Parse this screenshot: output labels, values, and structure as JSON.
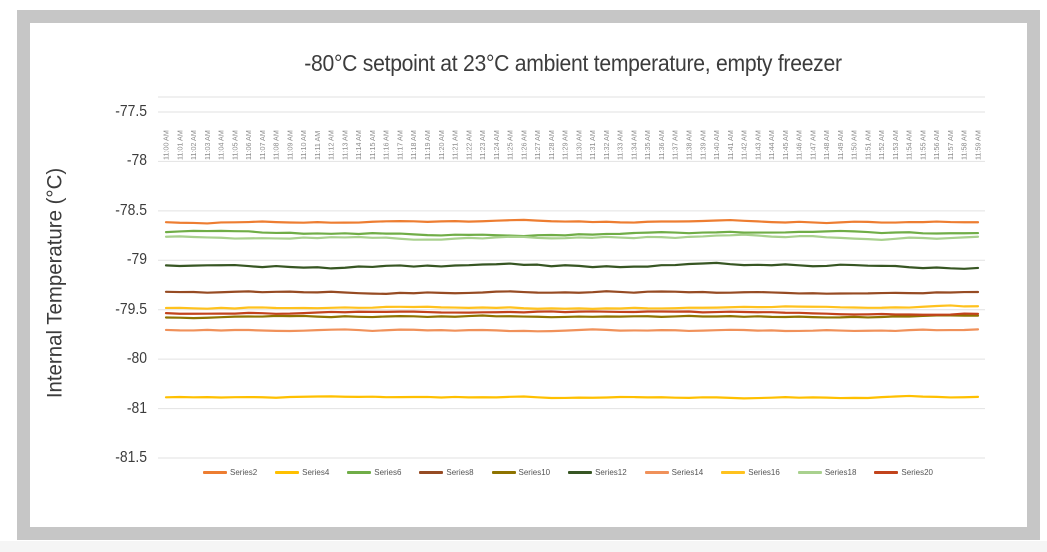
{
  "frame": {
    "border_color": "#c6c6c6",
    "background": "#ffffff",
    "page_strip_color": "#f5f5f5"
  },
  "chart_data": {
    "type": "line",
    "title": "-80°C setpoint at 23°C ambient temperature, empty freezer",
    "xlabel": "",
    "ylabel": "Internal Temperature (°C)",
    "grid": true,
    "gridline_color": "#e2e2e2",
    "tick_label_color": "#8c8c8c",
    "axis_text_color": "#3c3c3c",
    "legend_position": "bottom",
    "y_tick_labels": [
      "-77.5",
      "-78",
      "-78.5",
      "-79",
      "-79.5",
      "-80",
      "-81",
      "-81.5"
    ],
    "y_tick_values": [
      -77.5,
      -78,
      -78.5,
      -79,
      -79.5,
      -80,
      -81,
      -81.5
    ],
    "x_tick_labels": [
      "11:00 AM",
      "11:01 AM",
      "11:02 AM",
      "11:03 AM",
      "11:04 AM",
      "11:05 AM",
      "11:06 AM",
      "11:07 AM",
      "11:08 AM",
      "11:09 AM",
      "11:10 AM",
      "11:11 AM",
      "11:12 AM",
      "11:13 AM",
      "11:14 AM",
      "11:15 AM",
      "11:16 AM",
      "11:17 AM",
      "11:18 AM",
      "11:19 AM",
      "11:20 AM",
      "11:21 AM",
      "11:22 AM",
      "11:23 AM",
      "11:24 AM",
      "11:25 AM",
      "11:26 AM",
      "11:27 AM",
      "11:28 AM",
      "11:29 AM",
      "11:30 AM",
      "11:31 AM",
      "11:32 AM",
      "11:33 AM",
      "11:34 AM",
      "11:35 AM",
      "11:36 AM",
      "11:37 AM",
      "11:38 AM",
      "11:39 AM",
      "11:40 AM",
      "11:41 AM",
      "11:42 AM",
      "11:43 AM",
      "11:44 AM",
      "11:45 AM",
      "11:46 AM",
      "11:47 AM",
      "11:48 AM",
      "11:49 AM",
      "11:50 AM",
      "11:51 AM",
      "11:52 AM",
      "11:53 AM",
      "11:54 AM",
      "11:55 AM",
      "11:56 AM",
      "11:57 AM",
      "11:58 AM",
      "11:59 AM"
    ],
    "series": [
      {
        "name": "Series2",
        "color": "#ED7D31",
        "mean": -78.61,
        "wiggle": 1.0
      },
      {
        "name": "Series4",
        "color": "#FFC000",
        "mean": -80.77,
        "wiggle": 0.8
      },
      {
        "name": "Series6",
        "color": "#70AD47",
        "mean": -78.73,
        "wiggle": 1.2
      },
      {
        "name": "Series8",
        "color": "#964B23",
        "mean": -79.32,
        "wiggle": 1.0
      },
      {
        "name": "Series10",
        "color": "#8E7300",
        "mean": -79.57,
        "wiggle": 0.9
      },
      {
        "name": "Series12",
        "color": "#375623",
        "mean": -79.06,
        "wiggle": 1.6
      },
      {
        "name": "Series14",
        "color": "#F0915A",
        "mean": -79.71,
        "wiggle": 1.0
      },
      {
        "name": "Series16",
        "color": "#FFC21E",
        "mean": -79.48,
        "wiggle": 1.0
      },
      {
        "name": "Series18",
        "color": "#A9D18E",
        "mean": -78.77,
        "wiggle": 1.3
      },
      {
        "name": "Series20",
        "color": "#C2431C",
        "mean": -79.53,
        "wiggle": 0.9
      }
    ]
  }
}
